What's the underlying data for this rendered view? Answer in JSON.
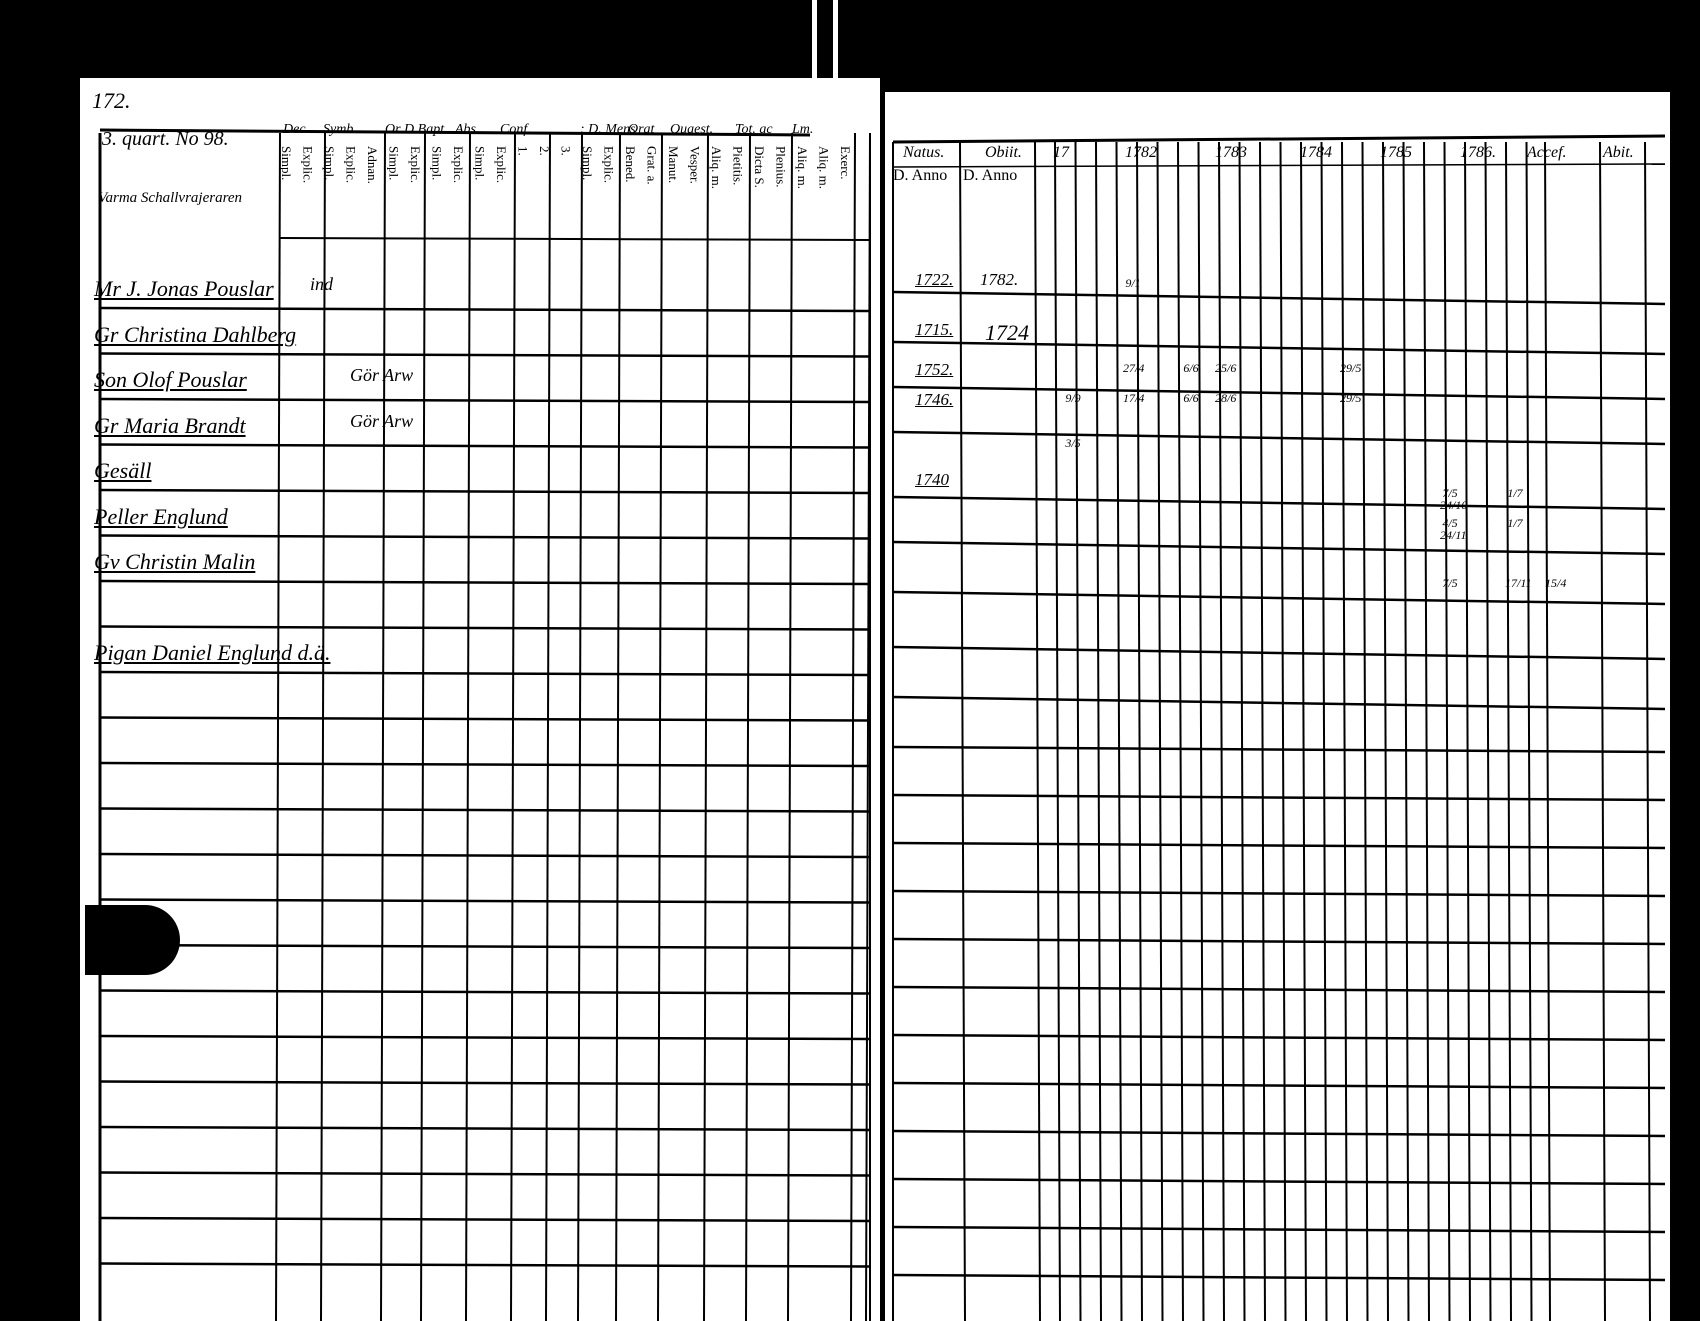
{
  "left_page": {
    "page_number": "172.",
    "household_heading": "3. quart. No 98.",
    "household_subheading": "Varma Schallvrajeraren",
    "column_groups": [
      "Dec.",
      "Symb.",
      "Or D Bapt",
      "Abs.",
      "Conf.",
      ": D. Mens",
      "Orat",
      "Quaest.",
      "Tot. ac",
      "Lm."
    ],
    "column_labels": [
      "Simpl.",
      "Explic.",
      "Simpl.",
      "Explic.",
      "Adnan.",
      "Simpl.",
      "Explic.",
      "Simpl.",
      "Explic.",
      "Simpl.",
      "Explic.",
      "1.",
      "2.",
      "3.",
      "Simpl.",
      "Explic.",
      "Bened.",
      "Grat. a.",
      "Manut.",
      "Vesper.",
      "Aliq. m.",
      "Pietitis.",
      "Dicta S.",
      "Plenius.",
      "Aliq. m.",
      "Aliq. m.",
      "Exerc."
    ],
    "entries": [
      {
        "name": "Mr J. Jonas Pouslar",
        "note": "ind"
      },
      {
        "name": "Gr Christina Dahlberg",
        "note": ""
      },
      {
        "name": "Son  Olof Pouslar",
        "note": "Gör Arw"
      },
      {
        "name": "Gr Maria Brandt",
        "note": "Gör Arw"
      },
      {
        "name": "Gesäll",
        "note": ""
      },
      {
        "name": "Peller Englund",
        "note": ""
      },
      {
        "name": "Gv Christin Malin",
        "note": ""
      },
      {
        "name": "",
        "note": ""
      },
      {
        "name": "Pigan Daniel Englund d.ä.",
        "note": ""
      }
    ]
  },
  "right_page": {
    "headers": [
      "Natus.",
      "Obiit.",
      "17",
      "1782",
      "1783",
      "1784",
      "1785",
      "1786.",
      "Accef.",
      "Abit."
    ],
    "subheaders": [
      "D. Anno",
      "D. Anno"
    ],
    "birth_years": [
      "1722.",
      "1715.",
      "1752.",
      "1746.",
      "",
      "1740"
    ],
    "death_years": [
      "1782.",
      "1724",
      "",
      "",
      "",
      ""
    ],
    "marks": [
      {
        "row": 0,
        "col": "1782",
        "text": "9/1"
      },
      {
        "row": 2,
        "col": "1782",
        "text": "27/4"
      },
      {
        "row": 2,
        "col": "1783",
        "text": "6/6"
      },
      {
        "row": 2,
        "col": "1783b",
        "text": "25/6"
      },
      {
        "row": 2,
        "col": "1785",
        "text": "29/5"
      },
      {
        "row": 3,
        "col": "17",
        "text": "9/9"
      },
      {
        "row": 3,
        "col": "1782",
        "text": "17/4"
      },
      {
        "row": 3,
        "col": "1783",
        "text": "6/6"
      },
      {
        "row": 3,
        "col": "1783b",
        "text": "28/6"
      },
      {
        "row": 3,
        "col": "1785",
        "text": "29/5"
      },
      {
        "row": 4,
        "col": "17",
        "text": "3/5"
      },
      {
        "row": 5,
        "col": "1786",
        "text": "7/5 24/10"
      },
      {
        "row": 5,
        "col": "accef",
        "text": "1/7"
      },
      {
        "row": 6,
        "col": "1786",
        "text": "4/5 24/11"
      },
      {
        "row": 6,
        "col": "accef",
        "text": "1/7"
      },
      {
        "row": 8,
        "col": "1786",
        "text": "7/5"
      },
      {
        "row": 8,
        "col": "accef",
        "text": "17/11"
      },
      {
        "row": 8,
        "col": "abit",
        "text": "15/4"
      }
    ]
  },
  "colors": {
    "background": "#000000",
    "paper": "#ffffff",
    "ink": "#000000"
  }
}
